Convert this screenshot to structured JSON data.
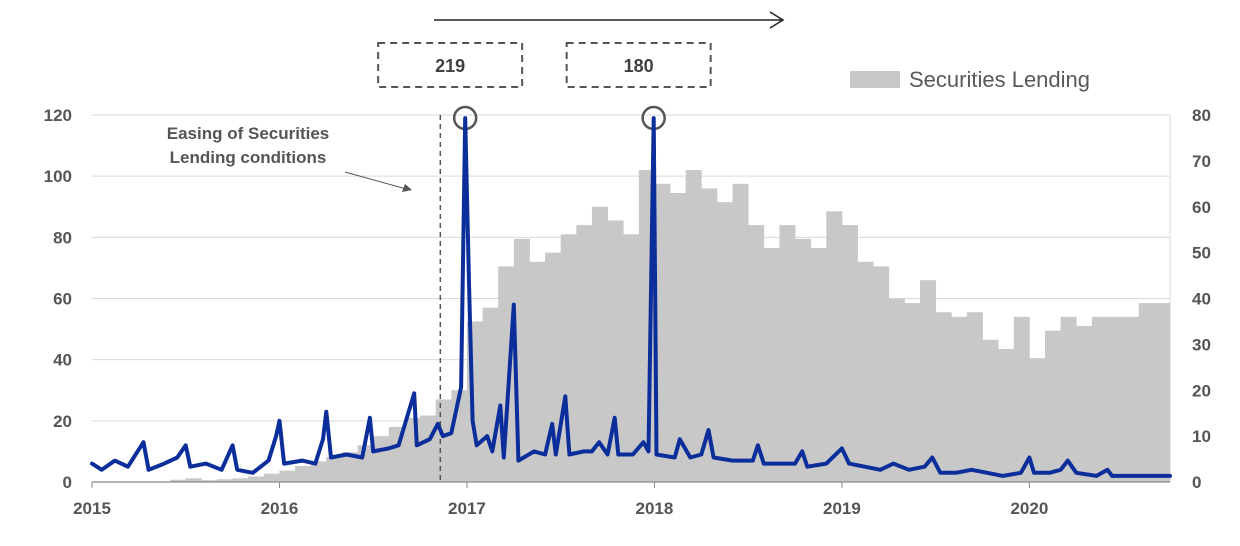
{
  "chart_data": {
    "type": "line",
    "x_range": [
      "2015-01",
      "2020-10"
    ],
    "x_ticks": [
      "2015",
      "2016",
      "2017",
      "2018",
      "2019",
      "2020"
    ],
    "y_left": {
      "range": [
        0,
        120
      ],
      "ticks": [
        "0",
        "20",
        "40",
        "60",
        "80",
        "100",
        "120"
      ]
    },
    "y_right": {
      "range": [
        0,
        80
      ],
      "ticks": [
        "0",
        "10",
        "20",
        "30",
        "40",
        "50",
        "60",
        "70",
        "80"
      ]
    },
    "grid": true,
    "legend": {
      "position": "top-right",
      "entries": [
        "Securities Lending"
      ]
    },
    "colors": {
      "line": "#0c2e9a",
      "bars": "#c8c8c8",
      "grid": "#d9d9d9"
    },
    "series": [
      {
        "name": "Securities Lending",
        "kind": "area-step",
        "axis": "right",
        "points": [
          [
            "2015-06",
            0.5
          ],
          [
            "2015-07",
            0.8
          ],
          [
            "2015-08",
            0.4
          ],
          [
            "2015-09",
            0.6
          ],
          [
            "2015-10",
            0.8
          ],
          [
            "2015-11",
            1.2
          ],
          [
            "2015-12",
            1.8
          ],
          [
            "2016-01",
            2.5
          ],
          [
            "2016-02",
            3.5
          ],
          [
            "2016-03",
            4.5
          ],
          [
            "2016-04",
            5.5
          ],
          [
            "2016-05",
            6.5
          ],
          [
            "2016-06",
            8
          ],
          [
            "2016-07",
            10
          ],
          [
            "2016-08",
            12
          ],
          [
            "2016-09",
            14
          ],
          [
            "2016-10",
            14.5
          ],
          [
            "2016-11",
            18
          ],
          [
            "2016-12",
            20
          ],
          [
            "2017-01",
            35
          ],
          [
            "2017-02",
            38
          ],
          [
            "2017-03",
            47
          ],
          [
            "2017-04",
            53
          ],
          [
            "2017-05",
            48
          ],
          [
            "2017-06",
            50
          ],
          [
            "2017-07",
            54
          ],
          [
            "2017-08",
            56
          ],
          [
            "2017-09",
            60
          ],
          [
            "2017-10",
            57
          ],
          [
            "2017-11",
            54
          ],
          [
            "2017-12",
            68
          ],
          [
            "2018-01",
            65
          ],
          [
            "2018-02",
            63
          ],
          [
            "2018-03",
            68
          ],
          [
            "2018-04",
            64
          ],
          [
            "2018-05",
            61
          ],
          [
            "2018-06",
            65
          ],
          [
            "2018-07",
            56
          ],
          [
            "2018-08",
            51
          ],
          [
            "2018-09",
            56
          ],
          [
            "2018-10",
            53
          ],
          [
            "2018-11",
            51
          ],
          [
            "2018-12",
            59
          ],
          [
            "2019-01",
            56
          ],
          [
            "2019-02",
            48
          ],
          [
            "2019-03",
            47
          ],
          [
            "2019-04",
            40
          ],
          [
            "2019-05",
            39
          ],
          [
            "2019-06",
            44
          ],
          [
            "2019-07",
            37
          ],
          [
            "2019-08",
            36
          ],
          [
            "2019-09",
            37
          ],
          [
            "2019-10",
            31
          ],
          [
            "2019-11",
            29
          ],
          [
            "2019-12",
            36
          ],
          [
            "2020-01",
            27
          ],
          [
            "2020-02",
            33
          ],
          [
            "2020-03",
            36
          ],
          [
            "2020-04",
            34
          ],
          [
            "2020-05",
            36
          ],
          [
            "2020-06",
            36
          ],
          [
            "2020-07",
            36
          ],
          [
            "2020-08",
            39
          ]
        ]
      },
      {
        "name": "",
        "kind": "line",
        "axis": "left",
        "points": [
          [
            "2015-01-01",
            6
          ],
          [
            "2015-01-20",
            4
          ],
          [
            "2015-02-15",
            7
          ],
          [
            "2015-03-10",
            5
          ],
          [
            "2015-04-10",
            13
          ],
          [
            "2015-04-20",
            4
          ],
          [
            "2015-05-20",
            6
          ],
          [
            "2015-06-15",
            8
          ],
          [
            "2015-07-01",
            12
          ],
          [
            "2015-07-10",
            5
          ],
          [
            "2015-08-10",
            6
          ],
          [
            "2015-09-10",
            4
          ],
          [
            "2015-10-01",
            12
          ],
          [
            "2015-10-10",
            4
          ],
          [
            "2015-11-10",
            3
          ],
          [
            "2015-12-10",
            7
          ],
          [
            "2015-12-25",
            15
          ],
          [
            "2016-01-01",
            20
          ],
          [
            "2016-01-10",
            6
          ],
          [
            "2016-02-15",
            7
          ],
          [
            "2016-03-10",
            6
          ],
          [
            "2016-03-25",
            14
          ],
          [
            "2016-04-01",
            23
          ],
          [
            "2016-04-10",
            8
          ],
          [
            "2016-05-10",
            9
          ],
          [
            "2016-06-10",
            8
          ],
          [
            "2016-06-25",
            21
          ],
          [
            "2016-07-01",
            10
          ],
          [
            "2016-08-01",
            11
          ],
          [
            "2016-08-20",
            12
          ],
          [
            "2016-09-20",
            29
          ],
          [
            "2016-09-25",
            12
          ],
          [
            "2016-10-20",
            14
          ],
          [
            "2016-11-05",
            19
          ],
          [
            "2016-11-15",
            15
          ],
          [
            "2016-12-01",
            16
          ],
          [
            "2016-12-20",
            31
          ],
          [
            "2016-12-28",
            119
          ],
          [
            "2017-01-05",
            65
          ],
          [
            "2017-01-12",
            20
          ],
          [
            "2017-01-20",
            12
          ],
          [
            "2017-02-10",
            15
          ],
          [
            "2017-02-20",
            10
          ],
          [
            "2017-03-05",
            25
          ],
          [
            "2017-03-12",
            8
          ],
          [
            "2017-04-01",
            58
          ],
          [
            "2017-04-10",
            7
          ],
          [
            "2017-05-10",
            10
          ],
          [
            "2017-06-01",
            9
          ],
          [
            "2017-06-15",
            19
          ],
          [
            "2017-06-22",
            9
          ],
          [
            "2017-07-10",
            28
          ],
          [
            "2017-07-18",
            9
          ],
          [
            "2017-08-15",
            10
          ],
          [
            "2017-09-01",
            10
          ],
          [
            "2017-09-15",
            13
          ],
          [
            "2017-10-01",
            9
          ],
          [
            "2017-10-15",
            21
          ],
          [
            "2017-10-22",
            9
          ],
          [
            "2017-11-20",
            9
          ],
          [
            "2017-12-10",
            13
          ],
          [
            "2017-12-20",
            10
          ],
          [
            "2017-12-30",
            119
          ],
          [
            "2018-01-05",
            9
          ],
          [
            "2018-02-10",
            8
          ],
          [
            "2018-02-20",
            14
          ],
          [
            "2018-03-10",
            8
          ],
          [
            "2018-04-01",
            9
          ],
          [
            "2018-04-15",
            17
          ],
          [
            "2018-04-25",
            8
          ],
          [
            "2018-06-01",
            7
          ],
          [
            "2018-07-10",
            7
          ],
          [
            "2018-07-20",
            12
          ],
          [
            "2018-08-01",
            6
          ],
          [
            "2018-09-10",
            6
          ],
          [
            "2018-10-01",
            6
          ],
          [
            "2018-10-15",
            10
          ],
          [
            "2018-10-25",
            5
          ],
          [
            "2018-12-01",
            6
          ],
          [
            "2019-01-01",
            11
          ],
          [
            "2019-01-15",
            6
          ],
          [
            "2019-02-15",
            5
          ],
          [
            "2019-03-15",
            4
          ],
          [
            "2019-04-10",
            6
          ],
          [
            "2019-05-10",
            4
          ],
          [
            "2019-06-10",
            5
          ],
          [
            "2019-06-25",
            8
          ],
          [
            "2019-07-10",
            3
          ],
          [
            "2019-08-10",
            3
          ],
          [
            "2019-09-10",
            4
          ],
          [
            "2019-10-10",
            3
          ],
          [
            "2019-11-10",
            2
          ],
          [
            "2019-12-15",
            3
          ],
          [
            "2020-01-01",
            8
          ],
          [
            "2020-01-10",
            3
          ],
          [
            "2020-02-10",
            3
          ],
          [
            "2020-03-01",
            4
          ],
          [
            "2020-03-15",
            7
          ],
          [
            "2020-04-01",
            3
          ],
          [
            "2020-05-10",
            2
          ],
          [
            "2020-06-01",
            4
          ],
          [
            "2020-06-10",
            2
          ],
          [
            "2020-07-10",
            2
          ],
          [
            "2020-08-10",
            2
          ],
          [
            "2020-09-10",
            2
          ],
          [
            "2020-10-01",
            2
          ]
        ]
      }
    ],
    "annotations": {
      "easing_note": [
        "Easing of Securities",
        "Lending conditions"
      ],
      "easing_date": "2016-11-10",
      "callouts": [
        {
          "label": "219",
          "date": "2016-12-28"
        },
        {
          "label": "180",
          "date": "2017-12-30"
        }
      ]
    }
  }
}
